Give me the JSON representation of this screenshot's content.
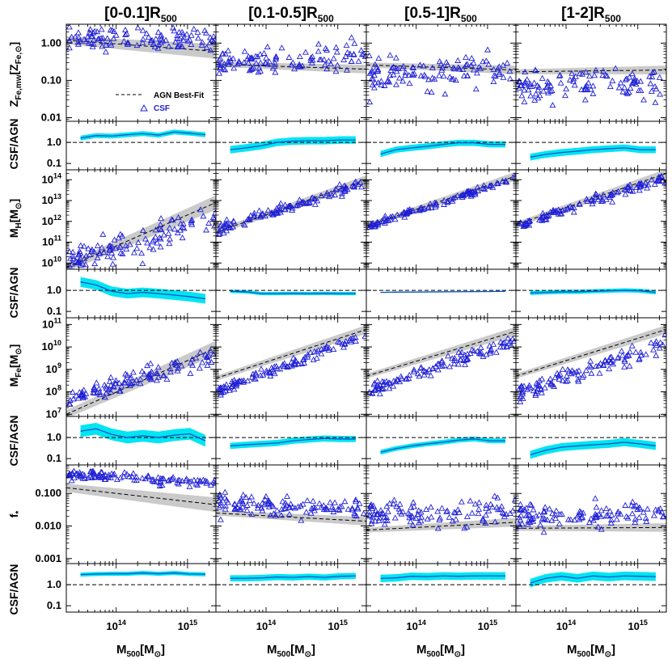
{
  "chart_data": {
    "type": "scatter",
    "columns": [
      "[0-0.1]R500",
      "[0.1-0.5]R500",
      "[0.5-1]R500",
      "[1-2]R500"
    ],
    "column_titles": [
      {
        "main": "[0-0.1]R",
        "sub": "500"
      },
      {
        "main": "[0.1-0.5]R",
        "sub": "500"
      },
      {
        "main": "[0.5-1]R",
        "sub": "500"
      },
      {
        "main": "[1-2]R",
        "sub": "500"
      }
    ],
    "xlabel": {
      "main": "M",
      "sub": "500",
      "rest": "[M",
      "sun": "⊙",
      "end": "]"
    },
    "xscale": "log",
    "xlim": [
      20000000000000,
      2500000000000000
    ],
    "xticks": [
      {
        "value": 100000000000000,
        "label": "10",
        "exp": "14"
      },
      {
        "value": 1000000000000000,
        "label": "10",
        "exp": "15"
      }
    ],
    "ratio_label": "CSF/AGN",
    "ratio_ylim": [
      0.05,
      10
    ],
    "ratio_ticks": [
      "1.0",
      "0.1"
    ],
    "legend": {
      "best_fit": "AGN Best-Fit",
      "csf": "CSF",
      "location": "lower-right of first panel"
    },
    "colors": {
      "csf": "#1f1fd6",
      "ratio_band": "#00e5f2",
      "ratio_line": "#1050c8",
      "fit_band": "#c4c4c4",
      "axes": "#000000"
    },
    "rows": [
      {
        "name": "iron-abundance",
        "ylabel": {
          "main": "Z",
          "sub": "Fe,mw",
          "rest": "[Z",
          "sub2": "Fe,⊙",
          "end": "]"
        },
        "yscale": "log",
        "ylim": [
          0.008,
          3.2
        ],
        "yticks": [
          {
            "value": 1.0,
            "label": "1.00"
          },
          {
            "value": 0.1,
            "label": "0.10"
          },
          {
            "value": 0.01,
            "label": "0.01"
          }
        ],
        "agn_fit": [
          [
            1.2,
            0.6
          ],
          [
            0.27,
            0.2
          ],
          [
            0.26,
            0.19
          ],
          [
            0.17,
            0.19
          ]
        ],
        "csf_trend": [
          [
            1.3,
            1.4
          ],
          [
            0.28,
            0.48
          ],
          [
            0.13,
            0.2
          ],
          [
            0.06,
            0.085
          ]
        ],
        "csf_scatter_dex": [
          0.15,
          0.17,
          0.2,
          0.2
        ],
        "ratio_curves": [
          [
            1.6,
            2.1,
            2.0,
            2.3,
            2.6,
            2.2,
            3.1,
            2.7,
            2.3
          ],
          [
            0.45,
            0.55,
            0.7,
            1.0,
            1.15,
            1.2,
            1.2,
            1.3,
            1.3
          ],
          [
            0.28,
            0.45,
            0.55,
            0.65,
            0.8,
            0.95,
            0.95,
            0.8,
            0.8
          ],
          [
            0.2,
            0.27,
            0.33,
            0.38,
            0.45,
            0.5,
            0.55,
            0.45,
            0.45
          ]
        ],
        "ratio_band_factor": [
          1.3,
          1.5,
          1.4,
          1.45
        ]
      },
      {
        "name": "hot-gas-mass",
        "ylabel": {
          "main": "M",
          "sub": "H",
          "rest": "[M",
          "sub2": "⊙",
          "end": "]"
        },
        "yscale": "log",
        "ylim": [
          5000000000,
          300000000000000
        ],
        "yticks": [
          {
            "value": 10000000000,
            "label": "10",
            "exp": "10"
          },
          {
            "value": 100000000000,
            "label": "10",
            "exp": "11"
          },
          {
            "value": 1000000000000,
            "label": "10",
            "exp": "12"
          },
          {
            "value": 10000000000000,
            "label": "10",
            "exp": "13"
          },
          {
            "value": 100000000000000,
            "label": "10",
            "exp": "14"
          }
        ],
        "agn_fit": [
          [
            6000000000,
            8000000000000
          ],
          [
            300000000000,
            100000000000000
          ],
          [
            600000000000,
            150000000000000
          ],
          [
            700000000000,
            200000000000000
          ]
        ],
        "csf_trend": [
          [
            10000000000,
            1500000000000
          ],
          [
            350000000000,
            80000000000000
          ],
          [
            550000000000,
            120000000000000
          ],
          [
            600000000000,
            130000000000000
          ]
        ],
        "csf_scatter_dex": [
          0.4,
          0.12,
          0.07,
          0.12
        ],
        "ratio_curves": [
          [
            2.5,
            1.8,
            0.9,
            0.7,
            0.8,
            0.7,
            0.6,
            0.5,
            0.4
          ],
          [
            0.9,
            0.85,
            0.7,
            0.7,
            0.72,
            0.7,
            0.72,
            0.7,
            0.7
          ],
          [
            0.8,
            0.82,
            0.83,
            0.84,
            0.85,
            0.86,
            0.87,
            0.88,
            0.9
          ],
          [
            0.75,
            0.8,
            0.85,
            0.85,
            0.9,
            0.95,
            1.0,
            0.95,
            0.8
          ]
        ],
        "ratio_band_factor": [
          1.7,
          1.2,
          1.05,
          1.25
        ]
      },
      {
        "name": "iron-mass",
        "ylabel": {
          "main": "M",
          "sub": "Fe",
          "rest": "[M",
          "sub2": "⊙",
          "end": "]"
        },
        "yscale": "log",
        "ylim": [
          8000000,
          200000000000
        ],
        "yticks": [
          {
            "value": 10000000,
            "label": "10",
            "exp": "7"
          },
          {
            "value": 100000000,
            "label": "10",
            "exp": "8"
          },
          {
            "value": 1000000000,
            "label": "10",
            "exp": "9"
          },
          {
            "value": 10000000000,
            "label": "10",
            "exp": "10"
          },
          {
            "value": 100000000000,
            "label": "10",
            "exp": "11"
          }
        ],
        "agn_fit": [
          [
            10000000,
            9000000000
          ],
          [
            400000000,
            60000000000
          ],
          [
            500000000,
            50000000000
          ],
          [
            500000000,
            60000000000
          ]
        ],
        "csf_trend": [
          [
            40000000,
            5000000000
          ],
          [
            100000000,
            30000000000
          ],
          [
            100000000,
            20000000000
          ],
          [
            80000000,
            15000000000
          ]
        ],
        "csf_scatter_dex": [
          0.2,
          0.12,
          0.15,
          0.18
        ],
        "ratio_curves": [
          [
            2.0,
            2.6,
            1.4,
            1.0,
            1.2,
            1.0,
            1.3,
            1.5,
            0.7
          ],
          [
            0.4,
            0.45,
            0.5,
            0.55,
            0.7,
            0.8,
            0.9,
            0.85,
            0.85
          ],
          [
            0.2,
            0.3,
            0.4,
            0.5,
            0.6,
            0.75,
            0.85,
            0.7,
            0.7
          ],
          [
            0.15,
            0.25,
            0.35,
            0.4,
            0.45,
            0.5,
            0.6,
            0.5,
            0.4
          ]
        ],
        "ratio_band_factor": [
          1.9,
          1.4,
          1.3,
          1.55
        ]
      },
      {
        "name": "stellar-fraction",
        "ylabel": {
          "main": "f",
          "sub": "*"
        },
        "yscale": "log",
        "ylim": [
          0.0007,
          0.75
        ],
        "yticks": [
          {
            "value": 0.1,
            "label": "0.100"
          },
          {
            "value": 0.01,
            "label": "0.010"
          },
          {
            "value": 0.001,
            "label": "0.001"
          }
        ],
        "agn_fit": [
          [
            0.15,
            0.045
          ],
          [
            0.025,
            0.014
          ],
          [
            0.0075,
            0.013
          ],
          [
            0.0085,
            0.009
          ]
        ],
        "csf_trend": [
          [
            0.4,
            0.2
          ],
          [
            0.05,
            0.035
          ],
          [
            0.025,
            0.025
          ],
          [
            0.02,
            0.02
          ]
        ],
        "csf_scatter_dex": [
          0.07,
          0.15,
          0.2,
          0.2
        ],
        "ratio_curves": [
          [
            3.0,
            3.2,
            3.3,
            3.3,
            3.6,
            3.3,
            3.6,
            3.2,
            3.1
          ],
          [
            2.0,
            2.0,
            2.1,
            2.3,
            2.2,
            2.4,
            2.2,
            2.5,
            2.6
          ],
          [
            2.0,
            2.1,
            2.5,
            2.4,
            2.6,
            2.5,
            2.6,
            2.6,
            2.6
          ],
          [
            1.2,
            2.0,
            2.5,
            2.0,
            2.6,
            2.3,
            2.6,
            2.5,
            2.4
          ]
        ],
        "ratio_band_factor": [
          1.25,
          1.4,
          1.5,
          1.6
        ]
      }
    ]
  }
}
